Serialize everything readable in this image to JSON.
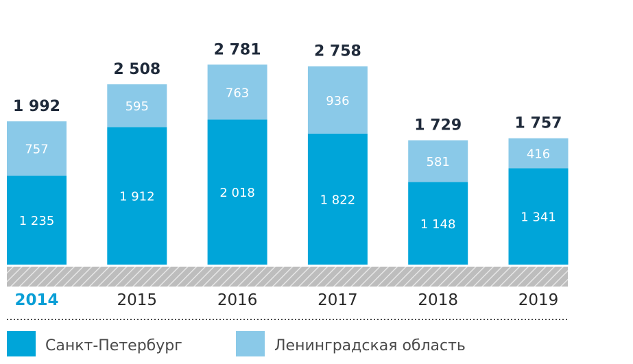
{
  "chart_data": {
    "type": "bar",
    "stacked": true,
    "categories": [
      "2014",
      "2015",
      "2016",
      "2017",
      "2018",
      "2019"
    ],
    "highlighted_category": "2014",
    "series": [
      {
        "name": "Санкт-Петербург",
        "values": [
          1235,
          1912,
          2018,
          1822,
          1148,
          1341
        ],
        "labels": [
          "1 235",
          "1 912",
          "2 018",
          "1 822",
          "1 148",
          "1 341"
        ],
        "color": "#00a5d9"
      },
      {
        "name": "Ленинградская область",
        "values": [
          757,
          595,
          763,
          936,
          581,
          416
        ],
        "labels": [
          "757",
          "595",
          "763",
          "936",
          "581",
          "416"
        ],
        "color": "#8ac9e8"
      }
    ],
    "totals": [
      1992,
      2508,
      2781,
      2758,
      1729,
      1757
    ],
    "total_labels": [
      "1 992",
      "2 508",
      "2 781",
      "2 758",
      "1 729",
      "1 757"
    ],
    "axis_color": "#b3b3b3",
    "total_label_color": "#1f2a3a",
    "highlight_color": "#0a9fd6",
    "legend_position": "bottom-left",
    "grid": false
  }
}
